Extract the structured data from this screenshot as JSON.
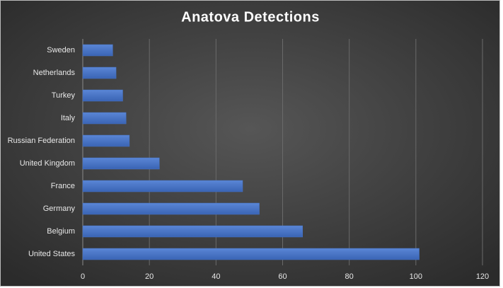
{
  "chart_data": {
    "type": "bar",
    "orientation": "horizontal",
    "title": "Anatova Detections",
    "categories": [
      "Sweden",
      "Netherlands",
      "Turkey",
      "Italy",
      "Russian Federation",
      "United Kingdom",
      "France",
      "Germany",
      "Belgium",
      "United States"
    ],
    "values": [
      9,
      10,
      12,
      13,
      14,
      23,
      48,
      53,
      66,
      101
    ],
    "color": "#4472c4",
    "xlim": [
      0,
      120
    ],
    "xticks": [
      0,
      20,
      40,
      60,
      80,
      100,
      120
    ],
    "grid": true
  }
}
